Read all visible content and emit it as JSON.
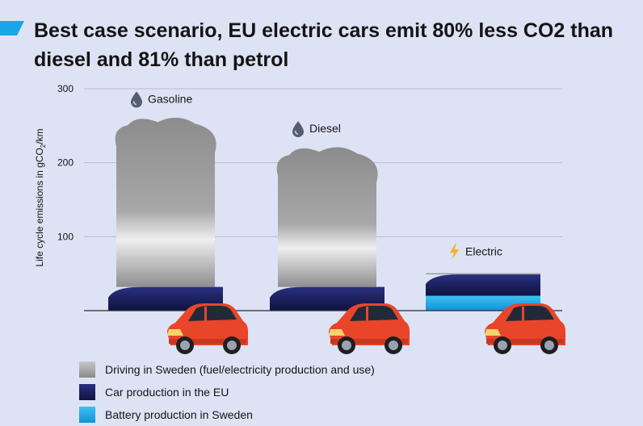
{
  "title": "Best case scenario, EU electric cars emit 80% less CO2 than diesel and 81% than petrol",
  "chart_data": {
    "type": "bar",
    "stacked": true,
    "categories": [
      "Gasoline",
      "Diesel",
      "Electric"
    ],
    "category_icons": [
      "fuel-drop-icon",
      "fuel-drop-icon",
      "lightning-icon"
    ],
    "ylabel_parts": [
      "Life cycle emissions in gCO",
      "2",
      "/km"
    ],
    "ylim": [
      0,
      300
    ],
    "yticks": [
      100,
      200,
      300
    ],
    "grid": true,
    "legend_position": "bottom-left",
    "series": [
      {
        "name": "Battery production in Sweden",
        "color": "#1aa6e8",
        "values": [
          0,
          0,
          20
        ]
      },
      {
        "name": "Car production in the EU",
        "color": "#151a55",
        "values": [
          32,
          32,
          29
        ]
      },
      {
        "name": "Driving in Sweden (fuel/electricity production and use)",
        "color": "#9a9a9a",
        "values": [
          225,
          185,
          2
        ]
      }
    ]
  },
  "legend": [
    {
      "label": "Driving in Sweden (fuel/electricity production and use)",
      "color": "#9a9a9a"
    },
    {
      "label": "Car production in the EU",
      "color": "#151a55"
    },
    {
      "label": "Battery production in Sweden",
      "color": "#1aa6e8"
    }
  ],
  "colors": {
    "background": "#dde3f5",
    "accent": "#1aa6e8",
    "car_body": "#e8452a"
  }
}
